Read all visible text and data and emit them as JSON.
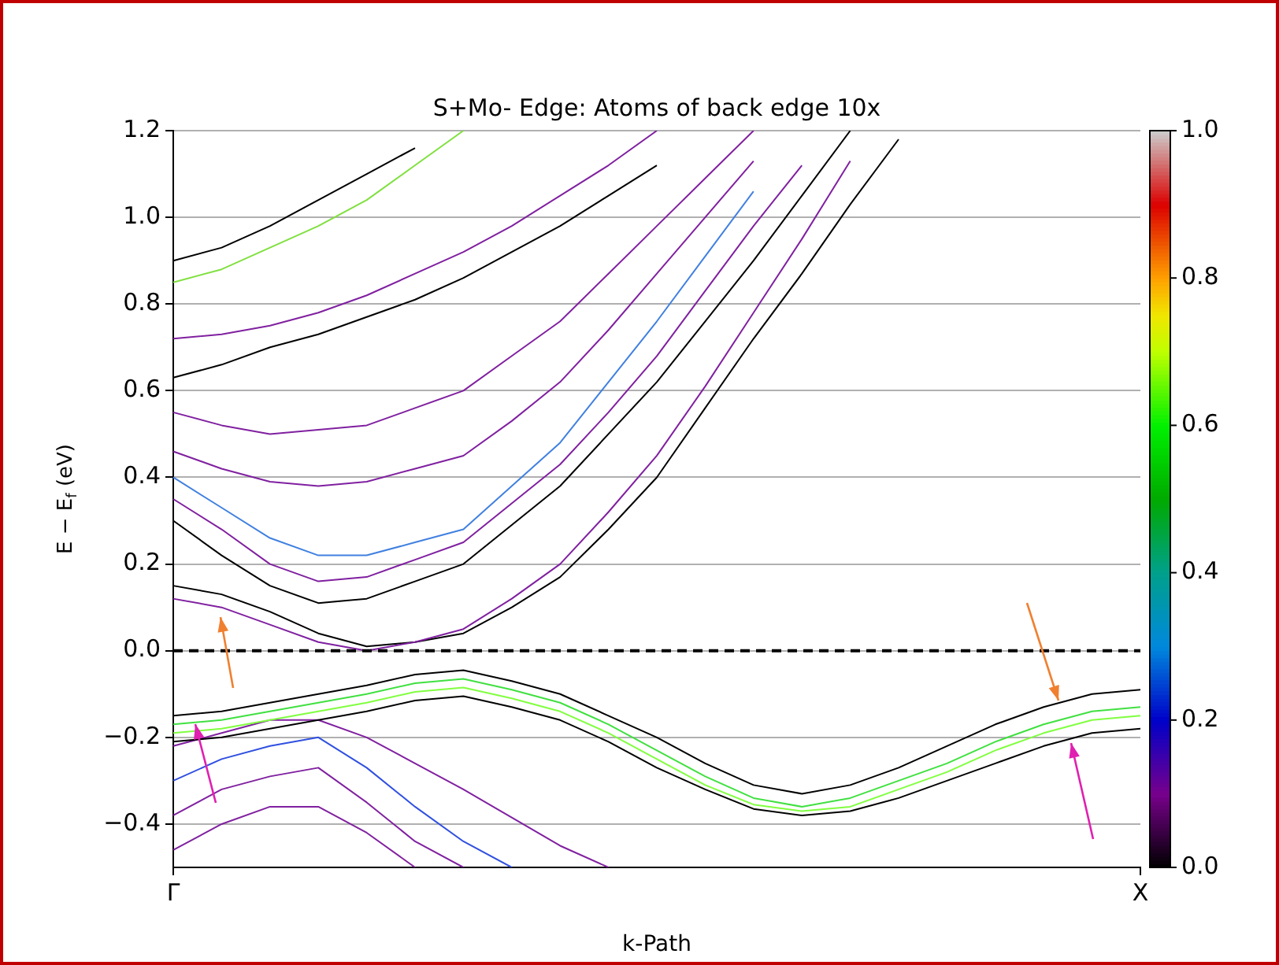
{
  "chart_data": {
    "type": "line",
    "title": "S+Mo- Edge: Atoms of back edge 10x",
    "xlabel": "k-Path",
    "ylabel": "E − E$_{f}$ (eV)",
    "categories": [
      "Γ",
      null,
      null,
      null,
      null,
      null,
      null,
      null,
      null,
      null,
      null,
      null,
      null,
      null,
      null,
      null,
      null,
      null,
      null,
      null,
      "X"
    ],
    "ylim": [
      -0.5,
      1.2
    ],
    "yticks": [
      {
        "value": -0.4,
        "label": "−0.4"
      },
      {
        "value": -0.2,
        "label": "−0.2"
      },
      {
        "value": 0,
        "label": "0.0"
      },
      {
        "value": 0.2,
        "label": "0.2"
      },
      {
        "value": 0.4,
        "label": "0.4"
      },
      {
        "value": 0.6,
        "label": "0.6"
      },
      {
        "value": 0.8,
        "label": "0.8"
      },
      {
        "value": 1,
        "label": "1.0"
      },
      {
        "value": 1.2,
        "label": "1.2"
      }
    ],
    "clim": [
      0,
      1
    ],
    "cticks": [
      {
        "value": 0,
        "label": "0.0"
      },
      {
        "value": 0.2,
        "label": "0.2"
      },
      {
        "value": 0.4,
        "label": "0.4"
      },
      {
        "value": 0.6,
        "label": "0.6"
      },
      {
        "value": 0.8,
        "label": "0.8"
      },
      {
        "value": 1,
        "label": "1.0"
      }
    ],
    "grid": "y",
    "legend": false,
    "marker": "none",
    "ref_lines": [
      {
        "axis": "y",
        "value": 0,
        "color": "#000000",
        "line_style": "dashed"
      }
    ],
    "series": [
      {
        "color": "#000000",
        "values": [
          -0.15,
          -0.14,
          -0.12,
          -0.1,
          -0.08,
          -0.055,
          -0.045,
          -0.07,
          -0.1,
          -0.15,
          -0.2,
          -0.26,
          -0.31,
          -0.33,
          -0.31,
          -0.27,
          -0.22,
          -0.17,
          -0.13,
          -0.1,
          -0.09
        ]
      },
      {
        "color": "#40e040",
        "values": [
          -0.17,
          -0.16,
          -0.14,
          -0.12,
          -0.1,
          -0.075,
          -0.065,
          -0.09,
          -0.12,
          -0.17,
          -0.23,
          -0.29,
          -0.34,
          -0.36,
          -0.34,
          -0.3,
          -0.26,
          -0.21,
          -0.17,
          -0.14,
          -0.13
        ]
      },
      {
        "color": "#80ff40",
        "values": [
          -0.19,
          -0.18,
          -0.16,
          -0.14,
          -0.12,
          -0.095,
          -0.085,
          -0.11,
          -0.14,
          -0.19,
          -0.25,
          -0.31,
          -0.355,
          -0.37,
          -0.36,
          -0.32,
          -0.28,
          -0.23,
          -0.19,
          -0.16,
          -0.15
        ]
      },
      {
        "color": "#000000",
        "values": [
          -0.21,
          -0.2,
          -0.18,
          -0.16,
          -0.14,
          -0.115,
          -0.105,
          -0.13,
          -0.16,
          -0.21,
          -0.27,
          -0.32,
          -0.365,
          -0.38,
          -0.37,
          -0.34,
          -0.3,
          -0.26,
          -0.22,
          -0.19,
          -0.18
        ]
      },
      {
        "color": "#8020a0",
        "values": [
          -0.22,
          -0.19,
          -0.16,
          -0.16,
          -0.2,
          -0.26,
          -0.32,
          -0.385,
          -0.45,
          -0.5,
          null,
          null,
          null,
          null,
          null,
          null,
          null,
          null,
          null,
          null,
          null
        ]
      },
      {
        "color": "#3050e0",
        "values": [
          -0.3,
          -0.25,
          -0.22,
          -0.2,
          -0.27,
          -0.36,
          -0.44,
          -0.5,
          null,
          null,
          null,
          null,
          null,
          null,
          null,
          null,
          null,
          null,
          null,
          null,
          null
        ]
      },
      {
        "color": "#8020a0",
        "values": [
          -0.38,
          -0.32,
          -0.29,
          -0.27,
          -0.35,
          -0.44,
          -0.5,
          null,
          null,
          null,
          null,
          null,
          null,
          null,
          null,
          null,
          null,
          null,
          null,
          null,
          null
        ]
      },
      {
        "color": "#8020a0",
        "values": [
          -0.46,
          -0.4,
          -0.36,
          -0.36,
          -0.42,
          -0.5,
          null,
          null,
          null,
          null,
          null,
          null,
          null,
          null,
          null,
          null,
          null,
          null,
          null,
          null,
          null
        ]
      },
      {
        "color": "#8020a0",
        "values": [
          0.12,
          0.1,
          0.06,
          0.02,
          0,
          0.02,
          0.05,
          0.12,
          0.2,
          0.32,
          0.45,
          0.61,
          0.78,
          0.95,
          1.13,
          null,
          null,
          null,
          null,
          null,
          null
        ]
      },
      {
        "color": "#000000",
        "values": [
          0.15,
          0.13,
          0.09,
          0.04,
          0.01,
          0.02,
          0.04,
          0.1,
          0.17,
          0.28,
          0.4,
          0.56,
          0.72,
          0.87,
          1.03,
          1.18,
          null,
          null,
          null,
          null,
          null
        ]
      },
      {
        "color": "#000000",
        "values": [
          0.3,
          0.22,
          0.15,
          0.11,
          0.12,
          0.16,
          0.2,
          0.29,
          0.38,
          0.5,
          0.62,
          0.76,
          0.9,
          1.05,
          1.2,
          null,
          null,
          null,
          null,
          null,
          null
        ]
      },
      {
        "color": "#8020a0",
        "values": [
          0.35,
          0.28,
          0.2,
          0.16,
          0.17,
          0.21,
          0.25,
          0.34,
          0.43,
          0.55,
          0.68,
          0.83,
          0.98,
          1.12,
          null,
          null,
          null,
          null,
          null,
          null,
          null
        ]
      },
      {
        "color": "#4080e0",
        "values": [
          0.4,
          0.33,
          0.26,
          0.22,
          0.22,
          0.25,
          0.28,
          0.38,
          0.48,
          0.62,
          0.76,
          0.91,
          1.06,
          null,
          null,
          null,
          null,
          null,
          null,
          null,
          null
        ]
      },
      {
        "color": "#8020a0",
        "values": [
          0.46,
          0.42,
          0.39,
          0.38,
          0.39,
          0.42,
          0.45,
          0.53,
          0.62,
          0.74,
          0.87,
          1.0,
          1.13,
          null,
          null,
          null,
          null,
          null,
          null,
          null,
          null
        ]
      },
      {
        "color": "#8020a0",
        "values": [
          0.55,
          0.52,
          0.5,
          0.51,
          0.52,
          0.56,
          0.6,
          0.68,
          0.76,
          0.87,
          0.98,
          1.09,
          1.2,
          null,
          null,
          null,
          null,
          null,
          null,
          null,
          null
        ]
      },
      {
        "color": "#000000",
        "values": [
          0.63,
          0.66,
          0.7,
          0.73,
          0.77,
          0.81,
          0.86,
          0.92,
          0.98,
          1.05,
          1.12,
          null,
          null,
          null,
          null,
          null,
          null,
          null,
          null,
          null,
          null
        ]
      },
      {
        "color": "#8020a0",
        "values": [
          0.72,
          0.73,
          0.75,
          0.78,
          0.82,
          0.87,
          0.92,
          0.98,
          1.05,
          1.12,
          1.2,
          null,
          null,
          null,
          null,
          null,
          null,
          null,
          null,
          null,
          null
        ]
      },
      {
        "color": "#80e040",
        "values": [
          0.85,
          0.88,
          0.93,
          0.98,
          1.04,
          1.12,
          1.2,
          null,
          null,
          null,
          null,
          null,
          null,
          null,
          null,
          null,
          null,
          null,
          null,
          null,
          null
        ]
      },
      {
        "color": "#000000",
        "values": [
          0.9,
          0.93,
          0.98,
          1.04,
          1.1,
          1.16,
          null,
          null,
          null,
          null,
          null,
          null,
          null,
          null,
          null,
          null,
          null,
          null,
          null,
          null,
          null
        ]
      }
    ]
  }
}
